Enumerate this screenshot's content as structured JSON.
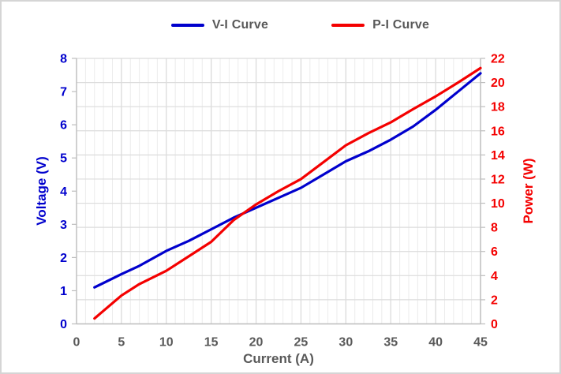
{
  "window": {
    "background": "#FFFFFF",
    "border_color": "#D5D5D5"
  },
  "colors": {
    "voltage_axis": "#0000CD",
    "power_axis": "#F40000",
    "tick_text": "#595959",
    "grid_major": "#D8D8D8",
    "grid_minor": "#ECECEC",
    "grid_horizontal": "#DCDCDC",
    "axis_line": "#BDBDBD"
  },
  "chart_data": {
    "type": "line",
    "title": "",
    "xlabel": "Current (A)",
    "ylabel_left": "Voltage (V)",
    "ylabel_right": "Power (W)",
    "xlim": [
      0,
      45
    ],
    "x_ticks": [
      0,
      5,
      10,
      15,
      20,
      25,
      30,
      35,
      40,
      45
    ],
    "x_minor_step": 1,
    "ylim_left": [
      0,
      8
    ],
    "y_left_ticks": [
      0,
      1,
      2,
      3,
      4,
      5,
      6,
      7,
      8
    ],
    "ylim_right": [
      0,
      22
    ],
    "y_right_ticks": [
      0,
      2,
      4,
      6,
      8,
      10,
      12,
      14,
      16,
      18,
      20,
      22
    ],
    "grid": "horizontal gridlines every 2 W (right axis); vertical minor every 1 A, major every 5 A",
    "legend_position": "top-center",
    "series": [
      {
        "name": "V-I Curve",
        "axis": "left",
        "color": "#0000CD",
        "x": [
          2,
          5,
          7,
          10,
          12.5,
          15,
          17.5,
          20,
          22.5,
          25,
          27.5,
          30,
          32.5,
          35,
          37.5,
          40,
          42.5,
          45
        ],
        "y": [
          1.1,
          1.5,
          1.75,
          2.2,
          2.5,
          2.85,
          3.2,
          3.5,
          3.8,
          4.1,
          4.5,
          4.9,
          5.2,
          5.55,
          5.95,
          6.45,
          7.0,
          7.55
        ]
      },
      {
        "name": "P-I Curve",
        "axis": "right",
        "color": "#F40000",
        "x": [
          2,
          5,
          7,
          10,
          12.5,
          15,
          17.5,
          20,
          22.5,
          25,
          27.5,
          30,
          32.5,
          35,
          37.5,
          40,
          42.5,
          45
        ],
        "y": [
          0.45,
          2.35,
          3.3,
          4.4,
          5.6,
          6.8,
          8.6,
          9.9,
          11.0,
          12.0,
          13.4,
          14.8,
          15.8,
          16.7,
          17.8,
          18.85,
          20.0,
          21.2
        ]
      }
    ]
  }
}
